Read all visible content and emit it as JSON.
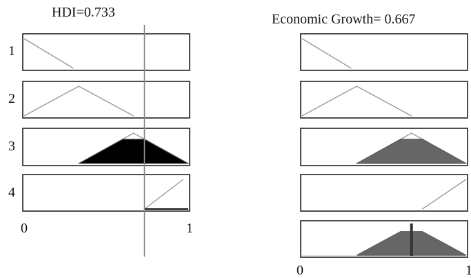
{
  "left_panel": {
    "title": "HDI=0.733",
    "input_value": 0.733,
    "row_labels": [
      "1",
      "2",
      "3",
      "4"
    ],
    "axis_min_label": "0",
    "axis_max_label": "1",
    "membership_functions": [
      {
        "points": [
          [
            0,
            1
          ],
          [
            0.3,
            0
          ]
        ],
        "fill": "none"
      },
      {
        "points": [
          [
            0,
            0
          ],
          [
            0.333,
            1
          ],
          [
            0.667,
            0
          ]
        ],
        "fill": "none"
      },
      {
        "points": [
          [
            0.333,
            0
          ],
          [
            0.667,
            1
          ],
          [
            1,
            0
          ]
        ],
        "fill": "#000000",
        "truncate_at": 0.8
      },
      {
        "points": [
          [
            0.733,
            0
          ],
          [
            0.97,
            1
          ]
        ],
        "fill": "none",
        "truncate_at": 0.0
      }
    ]
  },
  "right_panel": {
    "title": "Economic Growth= 0.667",
    "output_value": 0.667,
    "axis_min_label": "0",
    "axis_max_label": "1",
    "membership_functions": [
      {
        "points": [
          [
            0,
            1
          ],
          [
            0.3,
            0
          ]
        ],
        "fill": "none"
      },
      {
        "points": [
          [
            0,
            0
          ],
          [
            0.333,
            1
          ],
          [
            0.667,
            0
          ]
        ],
        "fill": "none"
      },
      {
        "points": [
          [
            0.333,
            0
          ],
          [
            0.667,
            1
          ],
          [
            1,
            0
          ]
        ],
        "fill": "#666666",
        "truncate_at": 0.8
      },
      {
        "points": [
          [
            0.733,
            0
          ],
          [
            1,
            1
          ]
        ],
        "fill": "none"
      }
    ],
    "aggregate": {
      "points": [
        [
          0.333,
          0
        ],
        [
          0.667,
          1
        ],
        [
          1,
          0
        ]
      ],
      "truncate_at": 0.8,
      "fill": "#666666"
    }
  }
}
